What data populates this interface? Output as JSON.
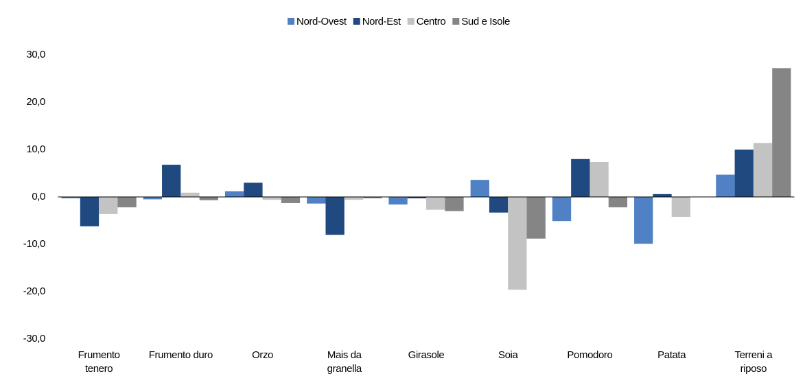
{
  "chart_data": {
    "type": "bar",
    "categories": [
      "Frumento tenero",
      "Frumento duro",
      "Orzo",
      "Mais da granella",
      "Girasole",
      "Soia",
      "Pomodoro",
      "Patata",
      "Terreni a riposo"
    ],
    "series": [
      {
        "name": "Nord-Ovest",
        "color": "#4f81c4",
        "values": [
          -0.3,
          -0.5,
          1.2,
          -1.4,
          -1.6,
          3.6,
          -5.1,
          -9.9,
          4.7
        ]
      },
      {
        "name": "Nord-Est",
        "color": "#1f497f",
        "values": [
          -6.2,
          6.8,
          3.0,
          -8.0,
          -0.3,
          -3.3,
          8.0,
          0.6,
          10.0
        ]
      },
      {
        "name": "Centro",
        "color": "#c3c3c3",
        "values": [
          -3.6,
          0.9,
          -0.6,
          -0.6,
          -2.7,
          -19.6,
          7.4,
          -4.2,
          11.4
        ]
      },
      {
        "name": "Sud e Isole",
        "color": "#858585",
        "values": [
          -2.2,
          -0.7,
          -1.3,
          -0.3,
          -3.0,
          -8.8,
          -2.2,
          0,
          27.2
        ]
      }
    ],
    "ylim": [
      -30,
      30
    ],
    "yticks": [
      {
        "value": -30,
        "label": "-30,0"
      },
      {
        "value": -20,
        "label": "-20,0"
      },
      {
        "value": -10,
        "label": "-10,0"
      },
      {
        "value": 0,
        "label": "0,0"
      },
      {
        "value": 10,
        "label": "10,0"
      },
      {
        "value": 20,
        "label": "20,0"
      },
      {
        "value": 30,
        "label": "30,0"
      }
    ],
    "legend": "top"
  }
}
